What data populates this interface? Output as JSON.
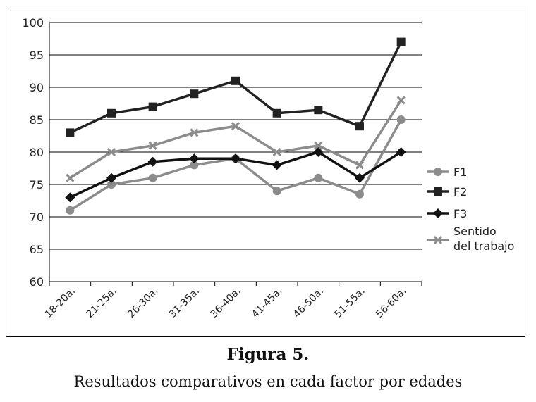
{
  "figure": {
    "title": "Figura 5.",
    "caption": "Resultados comparativos en cada factor por edades"
  },
  "chart_data": {
    "type": "line",
    "categories": [
      "18-20a.",
      "21-25a.",
      "26-30a.",
      "31-35a.",
      "36-40a.",
      "41-45a.",
      "46-50a.",
      "51-55a.",
      "56-60a."
    ],
    "ylim": [
      60,
      100
    ],
    "yticks": [
      60,
      65,
      70,
      75,
      80,
      85,
      90,
      95,
      100
    ],
    "grid": true,
    "legend": "right",
    "series": [
      {
        "name": "F1",
        "marker": "circle",
        "color": "#8c8c8c",
        "values": [
          71,
          75,
          76,
          78,
          79,
          74,
          76,
          73.5,
          85
        ]
      },
      {
        "name": "F2",
        "marker": "square",
        "color": "#222222",
        "values": [
          83,
          86,
          87,
          89,
          91,
          86,
          86.5,
          84,
          97
        ]
      },
      {
        "name": "F3",
        "marker": "diamond",
        "color": "#111111",
        "values": [
          73,
          76,
          78.5,
          79,
          79,
          78,
          80,
          76,
          80
        ]
      },
      {
        "name": "Sentido del trabajo",
        "name_lines": [
          "Sentido",
          "del trabajo"
        ],
        "marker": "x",
        "color": "#8c8c8c",
        "values": [
          76,
          80,
          81,
          83,
          84,
          80,
          81,
          78,
          88
        ]
      }
    ]
  }
}
